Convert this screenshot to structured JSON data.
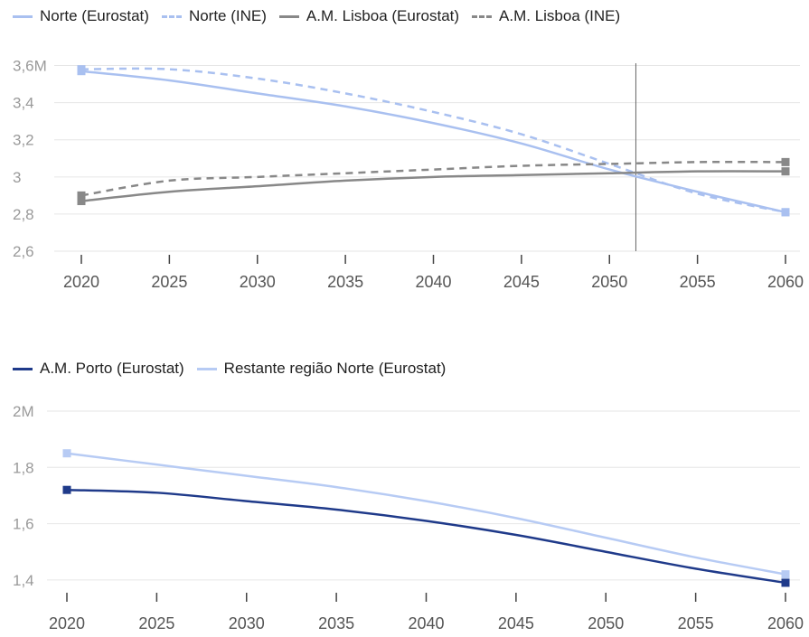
{
  "chart_data": [
    {
      "type": "line",
      "x": [
        2020,
        2025,
        2030,
        2035,
        2040,
        2045,
        2050,
        2055,
        2060
      ],
      "y_ticks": [
        2.6,
        2.8,
        3,
        3.2,
        3.4,
        3.6
      ],
      "y_tick_labels": [
        "2,6",
        "2,8",
        "3",
        "3,2",
        "3,4",
        "3,6M"
      ],
      "ylim": [
        2.6,
        3.7
      ],
      "xlim": [
        2020,
        2060
      ],
      "grid": true,
      "legend_position": "top-left",
      "series": [
        {
          "name": "Norte (Eurostat)",
          "color": "#a9c0f0",
          "dash": false,
          "values": [
            3.57,
            3.52,
            3.45,
            3.38,
            3.29,
            3.18,
            3.04,
            2.92,
            2.81
          ]
        },
        {
          "name": "Norte (INE)",
          "color": "#a9c0f0",
          "dash": true,
          "values": [
            3.58,
            3.58,
            3.53,
            3.45,
            3.35,
            3.23,
            3.07,
            2.91,
            2.81
          ]
        },
        {
          "name": "A.M. Lisboa (Eurostat)",
          "color": "#888888",
          "dash": false,
          "values": [
            2.87,
            2.92,
            2.95,
            2.98,
            3.0,
            3.01,
            3.02,
            3.03,
            3.03
          ]
        },
        {
          "name": "A.M. Lisboa (INE)",
          "color": "#888888",
          "dash": true,
          "values": [
            2.9,
            2.98,
            3.0,
            3.02,
            3.04,
            3.06,
            3.07,
            3.08,
            3.08
          ]
        }
      ],
      "crosshair_x": 2051.5
    },
    {
      "type": "line",
      "x": [
        2020,
        2025,
        2030,
        2035,
        2040,
        2045,
        2050,
        2055,
        2060
      ],
      "y_ticks": [
        1.4,
        1.6,
        1.8,
        2
      ],
      "y_tick_labels": [
        "1,4",
        "1,6",
        "1,8",
        "2M"
      ],
      "ylim": [
        1.3,
        2.0
      ],
      "xlim": [
        2020,
        2060
      ],
      "grid": true,
      "legend_position": "top-left",
      "series": [
        {
          "name": "A.M. Porto (Eurostat)",
          "color": "#1f3a8a",
          "dash": false,
          "values": [
            1.72,
            1.71,
            1.68,
            1.65,
            1.61,
            1.56,
            1.5,
            1.44,
            1.39
          ]
        },
        {
          "name": "Restante região Norte (Eurostat)",
          "color": "#b7cbf4",
          "dash": false,
          "values": [
            1.85,
            1.81,
            1.77,
            1.73,
            1.68,
            1.62,
            1.55,
            1.48,
            1.42
          ]
        }
      ]
    }
  ]
}
